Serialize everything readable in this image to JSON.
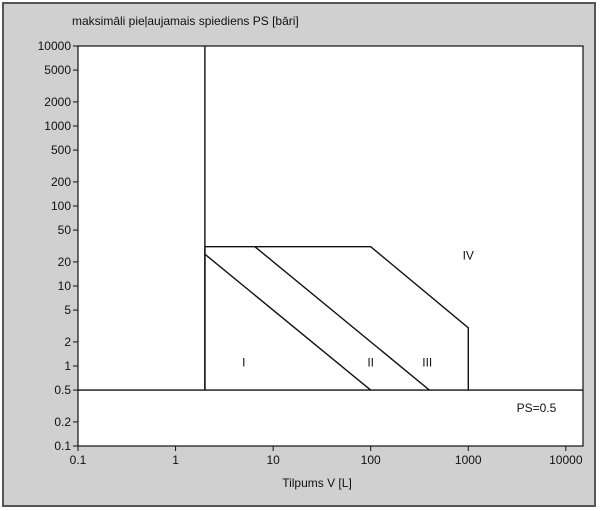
{
  "chart_data": {
    "type": "line",
    "title": "maksimāli pieļaujamais spiediens PS [bāri]",
    "xlabel": "Tilpums V [L]",
    "ylabel": "",
    "x_scale": "log",
    "y_scale": "log",
    "xlim": [
      0.1,
      15000
    ],
    "ylim": [
      0.1,
      10000
    ],
    "x_ticks": [
      0.1,
      1,
      10,
      100,
      1000,
      10000
    ],
    "x_tick_labels": [
      "0.1",
      "1",
      "10",
      "100",
      "1000",
      "10000"
    ],
    "y_ticks": [
      0.1,
      0.2,
      0.5,
      1,
      2,
      5,
      10,
      20,
      50,
      100,
      200,
      500,
      1000,
      2000,
      5000,
      10000
    ],
    "y_tick_labels": [
      "0.1",
      "0.2",
      "0.5",
      "1",
      "2",
      "5",
      "10",
      "20",
      "50",
      "100",
      "200",
      "500",
      "1000",
      "2000",
      "5000",
      "10000"
    ],
    "grid": false,
    "series": [
      {
        "points": [
          [
            2,
            0.5
          ],
          [
            2,
            10000
          ]
        ]
      },
      {
        "points": [
          [
            0.1,
            0.5
          ],
          [
            15000,
            0.5
          ]
        ]
      },
      {
        "points": [
          [
            2,
            31
          ],
          [
            100,
            31
          ],
          [
            1000,
            3
          ],
          [
            1000,
            0.5
          ]
        ]
      },
      {
        "points": [
          [
            2,
            31
          ],
          [
            2,
            0.5
          ]
        ]
      },
      {
        "points": [
          [
            2,
            25
          ],
          [
            100,
            0.5
          ]
        ]
      },
      {
        "points": [
          [
            6.5,
            31
          ],
          [
            400,
            0.5
          ]
        ]
      }
    ],
    "annotations": [
      {
        "text": "I",
        "x": 5,
        "y": 1.1
      },
      {
        "text": "II",
        "x": 100,
        "y": 1.1
      },
      {
        "text": "III",
        "x": 380,
        "y": 1.1
      },
      {
        "text": "IV",
        "x": 1000,
        "y": 24
      },
      {
        "text": "PS=0.5",
        "x": 5000,
        "y": 0.3
      }
    ]
  },
  "colors": {
    "background": "#d0d0d0",
    "plot_area": "#ffffff",
    "lines": "#111111"
  }
}
